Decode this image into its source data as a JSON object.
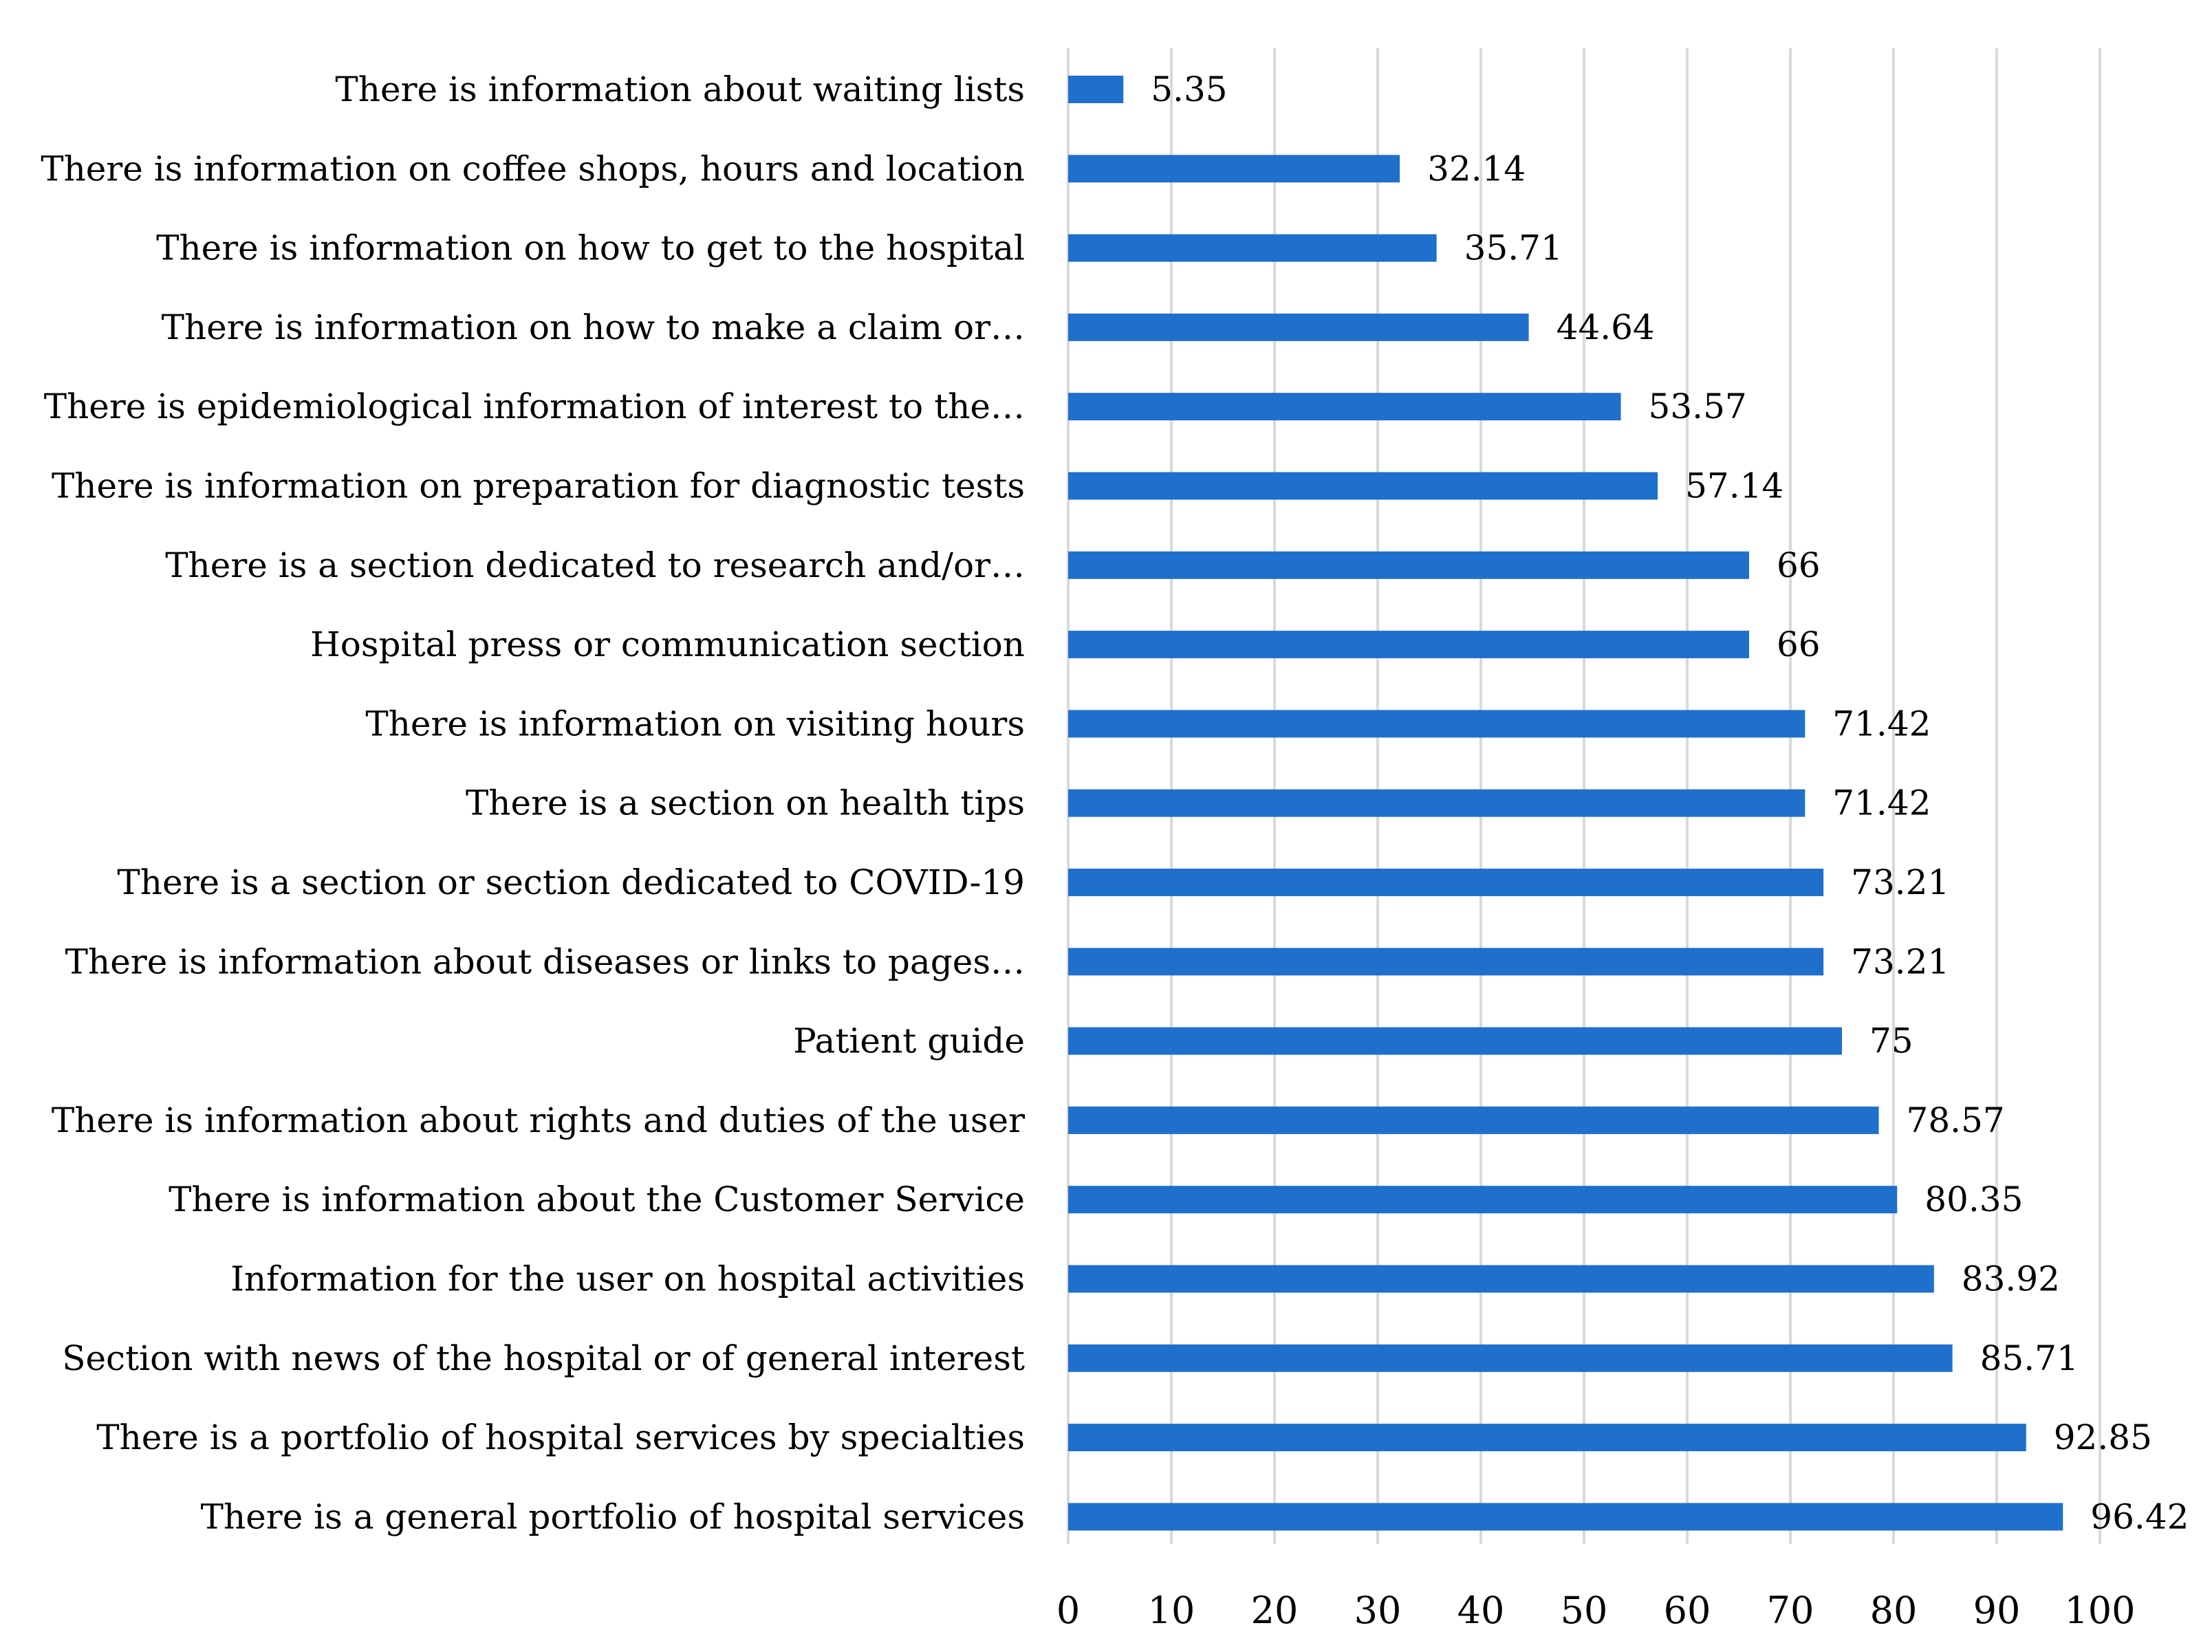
{
  "chart_data": {
    "type": "bar",
    "orientation": "horizontal",
    "categories": [
      "There is information about waiting lists",
      "There is information on coffee shops, hours and location",
      "There is information on how to get to the hospital",
      "There is information on how to make a claim or…",
      "There is epidemiological information of interest to the…",
      "There is information on preparation for diagnostic tests",
      "There is a section dedicated to research and/or…",
      "Hospital press or communication section",
      "There is information on visiting hours",
      "There is a section on health tips",
      "There is a section or section dedicated to COVID-19",
      "There is information about diseases or links to pages…",
      "Patient guide",
      "There is information about rights and duties of the user",
      "There is information about the Customer Service",
      "Information for the user on hospital activities",
      "Section with news of the hospital or of general interest",
      "There is a portfolio of hospital services by specialties",
      "There is a general portfolio of hospital services"
    ],
    "values": [
      5.35,
      32.14,
      35.71,
      44.64,
      53.57,
      57.14,
      66,
      66,
      71.42,
      71.42,
      73.21,
      73.21,
      75,
      78.57,
      80.35,
      83.92,
      85.71,
      92.85,
      96.42
    ],
    "value_labels": [
      "5.35",
      "32.14",
      "35.71",
      "44.64",
      "53.57",
      "57.14",
      "66",
      "66",
      "71.42",
      "71.42",
      "73.21",
      "73.21",
      "75",
      "78.57",
      "80.35",
      "83.92",
      "85.71",
      "92.85",
      "96.42"
    ],
    "xticks": [
      "0",
      "10",
      "20",
      "30",
      "40",
      "50",
      "60",
      "70",
      "80",
      "90",
      "100"
    ],
    "xlim": [
      0,
      100
    ],
    "title": "",
    "xlabel": "",
    "ylabel": "",
    "grid": true,
    "legend": "none",
    "bar_color": "#1f6fcc",
    "grid_color": "#d9d9d9"
  }
}
